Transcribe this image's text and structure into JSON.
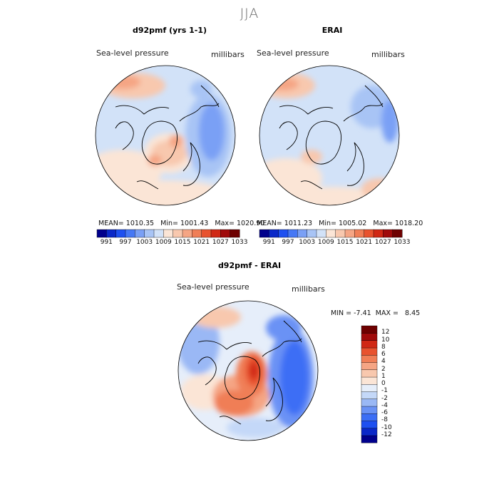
{
  "season_title": "JJA",
  "panels": [
    {
      "title": "d92pmf (yrs 1-1)",
      "field_label": "Sea-level pressure",
      "units_label": "millibars",
      "stats": {
        "mean_label": "MEAN=",
        "mean": "1010.35",
        "min_label": "Min=",
        "min": "1001.43",
        "max_label": "Max=",
        "max": "1020.90"
      }
    },
    {
      "title": "ERAI",
      "field_label": "Sea-level pressure",
      "units_label": "millibars",
      "stats": {
        "mean_label": "MEAN=",
        "mean": "1011.23",
        "min_label": "Min=",
        "min": "1005.02",
        "max_label": "Max=",
        "max": "1018.20"
      }
    },
    {
      "title": "d92pmf - ERAI",
      "field_label": "Sea-level pressure",
      "units_label": "millibars",
      "stats": {
        "min_label": "MIN =",
        "min": "-7.41",
        "max_label": "MAX =",
        "max": "8.45"
      }
    }
  ],
  "colorbar_abs": {
    "colors": [
      "#00008c",
      "#0a28c8",
      "#1e50f0",
      "#4678f5",
      "#7aa0f5",
      "#a8c4f5",
      "#d2e2f8",
      "#fbe5d6",
      "#f8c8ae",
      "#f5a584",
      "#f07e56",
      "#e8522e",
      "#d02814",
      "#a00a0a",
      "#6e0000"
    ],
    "ticks": [
      "991",
      "997",
      "1003",
      "1009",
      "1015",
      "1021",
      "1027",
      "1033"
    ]
  },
  "colorbar_diff": {
    "colors": [
      "#00008c",
      "#0a28c8",
      "#1e50f0",
      "#3c6ef5",
      "#6a92f5",
      "#9ab8f5",
      "#c4d8f8",
      "#e6eefa",
      "#fbe5d6",
      "#f8c8ae",
      "#f5a584",
      "#f07e56",
      "#e8522e",
      "#d02814",
      "#a00a0a",
      "#6e0000"
    ],
    "ticks": [
      "12",
      "10",
      "8",
      "6",
      "4",
      "2",
      "1",
      "0",
      "-1",
      "-2",
      "-4",
      "-6",
      "-8",
      "-10",
      "-12"
    ]
  },
  "chart_data": [
    {
      "type": "heatmap",
      "title": "d92pmf (yrs 1-1)",
      "variable": "Sea-level pressure",
      "units": "millibars",
      "projection": "polar stereographic (north)",
      "mean": 1010.35,
      "min": 1001.43,
      "max": 1020.9,
      "levels": [
        991,
        997,
        1003,
        1009,
        1015,
        1021,
        1027,
        1033
      ]
    },
    {
      "type": "heatmap",
      "title": "ERAI",
      "variable": "Sea-level pressure",
      "units": "millibars",
      "projection": "polar stereographic (north)",
      "mean": 1011.23,
      "min": 1005.02,
      "max": 1018.2,
      "levels": [
        991,
        997,
        1003,
        1009,
        1015,
        1021,
        1027,
        1033
      ]
    },
    {
      "type": "heatmap",
      "title": "d92pmf - ERAI",
      "variable": "Sea-level pressure difference",
      "units": "millibars",
      "projection": "polar stereographic (north)",
      "min": -7.41,
      "max": 8.45,
      "levels": [
        -12,
        -10,
        -8,
        -6,
        -4,
        -2,
        -1,
        0,
        1,
        2,
        4,
        6,
        8,
        10,
        12
      ]
    }
  ]
}
